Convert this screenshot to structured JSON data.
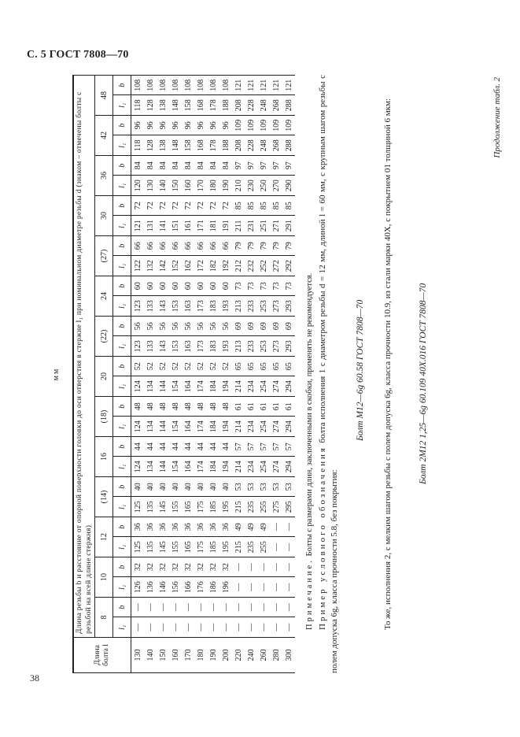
{
  "header": {
    "title": "С. 5 ГОСТ 7808—70",
    "page_number": "38"
  },
  "continuation": "Продолжение табл. 2",
  "units": "мм",
  "table": {
    "length_header": "Длина болта l",
    "caption": "Длина резьбы b и расстояние от опорной поверхности головки до оси отверстия в стержне l₁ при номинальном диаметре резьбы d (знаком – отмечены болты с резьбой на всей длине стержня)",
    "sub_l1": "l₁",
    "sub_b": "b",
    "lengths": [
      "130",
      "140",
      "150",
      "160",
      "170",
      "180",
      "190",
      "200",
      "220",
      "240",
      "260",
      "280",
      "300"
    ],
    "diameters": [
      {
        "d": "8",
        "l1": [
          "—",
          "—",
          "—",
          "—",
          "—",
          "—",
          "—",
          "—",
          "—",
          "—",
          "—",
          "—",
          "—"
        ],
        "b": [
          "—",
          "—",
          "—",
          "—",
          "—",
          "—",
          "—",
          "—",
          "—",
          "—",
          "—",
          "—",
          "—"
        ]
      },
      {
        "d": "10",
        "l1": [
          "126",
          "136",
          "146",
          "156",
          "166",
          "176",
          "186",
          "196",
          "—",
          "—",
          "—",
          "—",
          "—"
        ],
        "b": [
          "32",
          "32",
          "32",
          "32",
          "32",
          "32",
          "32",
          "32",
          "—",
          "—",
          "—",
          "—",
          "—"
        ]
      },
      {
        "d": "12",
        "l1": [
          "125",
          "135",
          "145",
          "155",
          "165",
          "175",
          "185",
          "195",
          "215",
          "235",
          "255",
          "—",
          "—"
        ],
        "b": [
          "36",
          "36",
          "36",
          "36",
          "36",
          "36",
          "36",
          "36",
          "49",
          "49",
          "49",
          "—",
          "—"
        ]
      },
      {
        "d": "(14)",
        "l1": [
          "125",
          "135",
          "145",
          "155",
          "165",
          "175",
          "185",
          "195",
          "215",
          "235",
          "255",
          "275",
          "295"
        ],
        "b": [
          "40",
          "40",
          "40",
          "40",
          "40",
          "40",
          "40",
          "40",
          "53",
          "53",
          "53",
          "53",
          "53"
        ]
      },
      {
        "d": "16",
        "l1": [
          "124",
          "134",
          "144",
          "154",
          "164",
          "174",
          "184",
          "194",
          "214",
          "234",
          "254",
          "274",
          "294"
        ],
        "b": [
          "44",
          "44",
          "44",
          "44",
          "44",
          "44",
          "44",
          "44",
          "57",
          "57",
          "57",
          "57",
          "57"
        ]
      },
      {
        "d": "(18)",
        "l1": [
          "124",
          "134",
          "144",
          "154",
          "164",
          "174",
          "184",
          "194",
          "214",
          "234",
          "254",
          "274",
          "294"
        ],
        "b": [
          "48",
          "48",
          "48",
          "48",
          "48",
          "48",
          "48",
          "48",
          "61",
          "61",
          "61",
          "61",
          "61"
        ]
      },
      {
        "d": "20",
        "l1": [
          "124",
          "134",
          "144",
          "154",
          "164",
          "174",
          "184",
          "194",
          "214",
          "234",
          "254",
          "274",
          "294"
        ],
        "b": [
          "52",
          "52",
          "52",
          "52",
          "52",
          "52",
          "52",
          "52",
          "65",
          "65",
          "65",
          "65",
          "65"
        ]
      },
      {
        "d": "(22)",
        "l1": [
          "123",
          "133",
          "143",
          "153",
          "163",
          "173",
          "183",
          "193",
          "213",
          "233",
          "253",
          "273",
          "293"
        ],
        "b": [
          "56",
          "56",
          "56",
          "56",
          "56",
          "56",
          "56",
          "56",
          "69",
          "69",
          "69",
          "69",
          "69"
        ]
      },
      {
        "d": "24",
        "l1": [
          "123",
          "133",
          "143",
          "153",
          "163",
          "173",
          "183",
          "193",
          "213",
          "233",
          "253",
          "273",
          "293"
        ],
        "b": [
          "60",
          "60",
          "60",
          "60",
          "60",
          "60",
          "60",
          "60",
          "73",
          "73",
          "73",
          "73",
          "73"
        ]
      },
      {
        "d": "(27)",
        "l1": [
          "122",
          "132",
          "142",
          "152",
          "162",
          "172",
          "182",
          "192",
          "212",
          "232",
          "252",
          "272",
          "292"
        ],
        "b": [
          "66",
          "66",
          "66",
          "66",
          "66",
          "66",
          "66",
          "66",
          "79",
          "79",
          "79",
          "79",
          "79"
        ]
      },
      {
        "d": "30",
        "l1": [
          "121",
          "131",
          "141",
          "151",
          "161",
          "171",
          "181",
          "191",
          "211",
          "231",
          "251",
          "271",
          "291"
        ],
        "b": [
          "72",
          "72",
          "72",
          "72",
          "72",
          "72",
          "72",
          "72",
          "85",
          "85",
          "85",
          "85",
          "85"
        ]
      },
      {
        "d": "36",
        "l1": [
          "120",
          "130",
          "140",
          "150",
          "160",
          "170",
          "180",
          "190",
          "210",
          "230",
          "250",
          "270",
          "290"
        ],
        "b": [
          "84",
          "84",
          "84",
          "84",
          "84",
          "84",
          "84",
          "84",
          "97",
          "97",
          "97",
          "97",
          "97"
        ]
      },
      {
        "d": "42",
        "l1": [
          "118",
          "128",
          "138",
          "148",
          "158",
          "168",
          "178",
          "188",
          "208",
          "228",
          "248",
          "268",
          "288"
        ],
        "b": [
          "96",
          "96",
          "96",
          "96",
          "96",
          "96",
          "96",
          "96",
          "109",
          "109",
          "109",
          "109",
          "109"
        ]
      },
      {
        "d": "48",
        "l1": [
          "118",
          "128",
          "138",
          "148",
          "158",
          "168",
          "178",
          "188",
          "208",
          "228",
          "248",
          "268",
          "288"
        ],
        "b": [
          "108",
          "108",
          "108",
          "108",
          "108",
          "108",
          "108",
          "108",
          "121",
          "121",
          "121",
          "121",
          "121"
        ]
      }
    ]
  },
  "note": {
    "label": "Примечание.",
    "text": " Болты с размерами длин, заключенными в скобки, применять не рекомендуется."
  },
  "example": {
    "label": "Пример условного обозначения",
    "text": " болта исполнения 1 с диаметром резьбы d = 12 мм, длиной l = 60 мм, с крупным шагом резьбы с полем допуска 6g, класса прочности 5.8, без покрытия:",
    "formula1": "Болт М12—6g 60.58   ГОСТ 7808—70",
    "text2": "То же, исполнения 2, с мелким шагом резьбы с полем допуска 6g, класса прочности 10.9, из стали марки 40Х, с покрытием 01 толщиной 6 мкм:",
    "formula2": "Болт 2М12 1,25—6g 60.109 40Х.016 ГОСТ 7808—70"
  }
}
